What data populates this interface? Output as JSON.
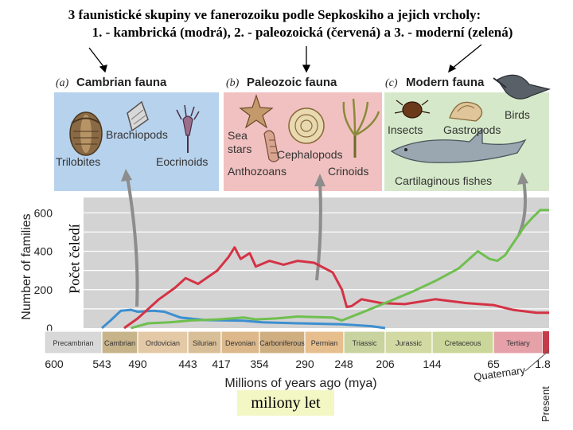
{
  "title": {
    "line1": "3 faunistické skupiny ve fanerozoiku podle Sepkoskiho a jejich vrcholy:",
    "line2": "1. - kambrická (modrá), 2. - paleozoická (červená) a 3. - moderní (zelená)"
  },
  "panels": [
    {
      "letter": "(a)",
      "title": "Cambrian fauna",
      "color": "#b7d2ec",
      "organisms": [
        "Brachiopods",
        "Trilobites",
        "Eocrinoids"
      ]
    },
    {
      "letter": "(b)",
      "title": "Paleozoic fauna",
      "color": "#f1c1c1",
      "organisms": [
        "Sea",
        "stars",
        "Cephalopods",
        "Anthozoans",
        "Crinoids"
      ]
    },
    {
      "letter": "(c)",
      "title": "Modern fauna",
      "color": "#d5e8c9",
      "organisms": [
        "Insects",
        "Gastropods",
        "Birds",
        "Cartilaginous fishes"
      ]
    }
  ],
  "axis": {
    "y_label": "Number of families",
    "y_label_cz": "Počet čeledí",
    "y_ticks": [
      "0",
      "200",
      "400",
      "600"
    ],
    "x_label": "Millions of years ago (mya)",
    "x_label_cz": "miliony let",
    "x_ticks": [
      "600",
      "543",
      "490",
      "443",
      "417",
      "354",
      "290",
      "248",
      "206",
      "144",
      "65",
      "1.8"
    ],
    "quaternary": "Quaternary",
    "present": "Present"
  },
  "periods": [
    {
      "name": "Precambrian",
      "color": "#d8d8d8"
    },
    {
      "name": "Cambrian",
      "color": "#c8b48a"
    },
    {
      "name": "Ordovician",
      "color": "#e4c9a6"
    },
    {
      "name": "Silurian",
      "color": "#d9bf98"
    },
    {
      "name": "Devonian",
      "color": "#dcb88a"
    },
    {
      "name": "Carboniferous",
      "color": "#cfae82"
    },
    {
      "name": "Permian",
      "color": "#e7bf8e"
    },
    {
      "name": "Triassic",
      "color": "#c8d3a0"
    },
    {
      "name": "Jurassic",
      "color": "#d2d9a2"
    },
    {
      "name": "Cretaceous",
      "color": "#cbd79a"
    },
    {
      "name": "Tertiary",
      "color": "#e6a0a8"
    }
  ],
  "colors": {
    "cambrian": "#3d8fd0",
    "paleozoic": "#d43245",
    "modern": "#6fbf4f",
    "plot_bg": "#d3d3d3"
  },
  "chart_data": {
    "type": "line",
    "title": "",
    "xlabel": "Millions of years ago (mya)",
    "ylabel": "Number of families",
    "xlim": [
      600,
      0
    ],
    "ylim": [
      0,
      680
    ],
    "series": [
      {
        "name": "Cambrian fauna",
        "x": [
          543,
          530,
          515,
          500,
          490,
          475,
          465,
          450,
          430,
          410,
          380,
          350,
          300,
          250,
          220,
          206
        ],
        "values": [
          0,
          40,
          90,
          95,
          85,
          90,
          85,
          55,
          42,
          40,
          38,
          30,
          25,
          20,
          10,
          0
        ]
      },
      {
        "name": "Paleozoic fauna",
        "x": [
          510,
          490,
          470,
          455,
          445,
          435,
          420,
          405,
          395,
          385,
          370,
          360,
          340,
          320,
          300,
          280,
          260,
          250,
          245,
          240,
          230,
          210,
          180,
          140,
          100,
          65,
          40,
          10,
          0
        ],
        "values": [
          0,
          50,
          150,
          210,
          260,
          230,
          300,
          370,
          420,
          360,
          390,
          320,
          350,
          330,
          350,
          340,
          290,
          200,
          110,
          115,
          150,
          130,
          125,
          150,
          130,
          120,
          95,
          80,
          80
        ]
      },
      {
        "name": "Modern fauna",
        "x": [
          500,
          480,
          460,
          440,
          420,
          400,
          380,
          360,
          330,
          300,
          260,
          250,
          230,
          200,
          170,
          140,
          110,
          85,
          70,
          60,
          50,
          40,
          25,
          15,
          5,
          0
        ],
        "values": [
          0,
          25,
          30,
          40,
          45,
          50,
          55,
          45,
          50,
          60,
          55,
          40,
          80,
          140,
          190,
          245,
          310,
          400,
          360,
          350,
          380,
          440,
          530,
          575,
          615,
          615
        ]
      }
    ]
  }
}
